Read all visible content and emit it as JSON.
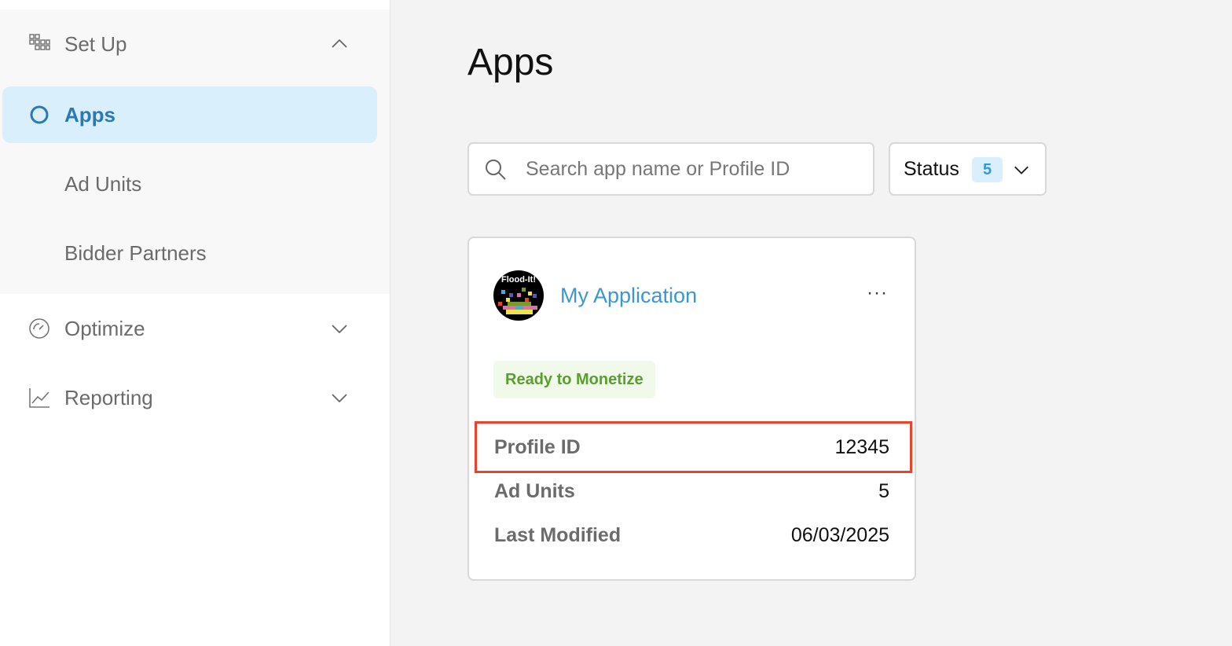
{
  "sidebar": {
    "setup": {
      "label": "Set Up",
      "icon": "grid-blocks-icon"
    },
    "items": [
      {
        "label": "Apps",
        "active": true
      },
      {
        "label": "Ad Units"
      },
      {
        "label": "Bidder Partners"
      }
    ],
    "optimize": {
      "label": "Optimize",
      "icon": "gauge-icon"
    },
    "reporting": {
      "label": "Reporting",
      "icon": "line-chart-icon"
    }
  },
  "main": {
    "title": "Apps",
    "search": {
      "placeholder": "Search app name or Profile ID",
      "value": ""
    },
    "status_filter": {
      "label": "Status",
      "count": "5"
    },
    "card": {
      "app_name": "My Application",
      "icon_text": "Flood-It!",
      "status_badge": "Ready to Monetize",
      "rows": [
        {
          "key": "Profile ID",
          "value": "12345"
        },
        {
          "key": "Ad Units",
          "value": "5"
        },
        {
          "key": "Last Modified",
          "value": "06/03/2025"
        }
      ]
    }
  },
  "colors": {
    "accent": "#3a97d4",
    "active_bg": "#d9effc",
    "badge_green": "#5a9e2f",
    "badge_bg": "#f0f9ea",
    "highlight": "#e8432c"
  }
}
